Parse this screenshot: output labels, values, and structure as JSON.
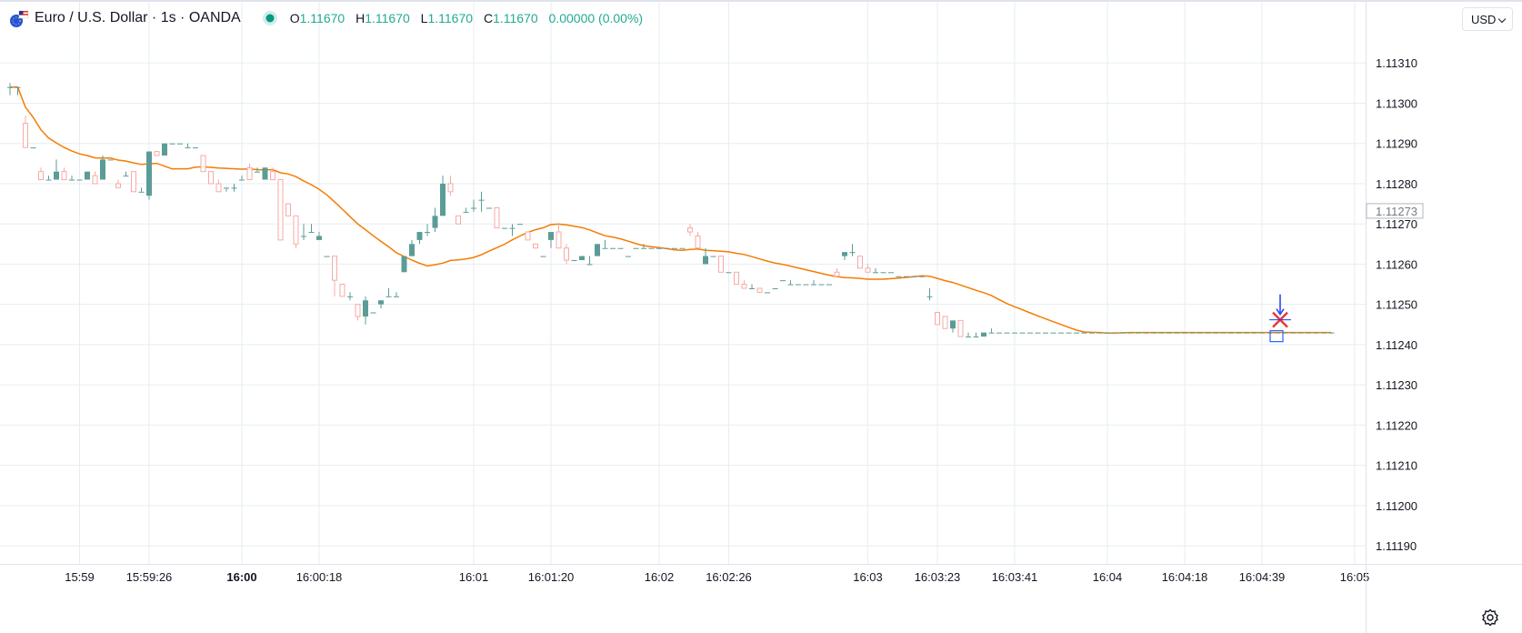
{
  "header": {
    "title": "Euro / U.S. Dollar · 1s · OANDA",
    "ohlc": {
      "o_label": "O",
      "o": "1.11670",
      "h_label": "H",
      "h": "1.11670",
      "l_label": "L",
      "l": "1.11670",
      "c_label": "C",
      "c": "1.11670",
      "change": "0.00000 (0.00%)"
    },
    "currency": "USD",
    "market_status_color": "#089981"
  },
  "colors": {
    "up": "#22ab94",
    "up_body": "#5b9c96",
    "down": "#f7a9a7",
    "ma": "#f57c00",
    "grid": "#e6edf3"
  },
  "chart_data": {
    "type": "candlestick",
    "title": "Euro / U.S. Dollar · 1s · OANDA",
    "ylim": [
      1.111855,
      1.113252
    ],
    "y_ticks": [
      1.1131,
      1.113,
      1.1129,
      1.1128,
      1.1127,
      1.1126,
      1.1125,
      1.1124,
      1.1123,
      1.1122,
      1.1121,
      1.112,
      1.1119
    ],
    "y_tick_labels": [
      "1.11310",
      "1.11300",
      "1.11290",
      "1.11280",
      "1.11270",
      "1.11260",
      "1.11250",
      "1.11240",
      "1.11230",
      "1.11220",
      "1.11210",
      "1.11200",
      "1.11190"
    ],
    "last_price_label": "1.11273",
    "last_price": 1.11273,
    "x_tick_labels": [
      {
        "label": "15:59",
        "bar": 9,
        "bold": false
      },
      {
        "label": "15:59:26",
        "bar": 18,
        "bold": false
      },
      {
        "label": "16:00",
        "bar": 30,
        "bold": true
      },
      {
        "label": "16:00:18",
        "bar": 40,
        "bold": false
      },
      {
        "label": "16:01",
        "bar": 60,
        "bold": false
      },
      {
        "label": "16:01:20",
        "bar": 70,
        "bold": false
      },
      {
        "label": "16:02",
        "bar": 84,
        "bold": false
      },
      {
        "label": "16:02:26",
        "bar": 93,
        "bold": false
      },
      {
        "label": "16:03",
        "bar": 111,
        "bold": false
      },
      {
        "label": "16:03:23",
        "bar": 120,
        "bold": false
      },
      {
        "label": "16:03:41",
        "bar": 130,
        "bold": false
      },
      {
        "label": "16:04",
        "bar": 142,
        "bold": false
      },
      {
        "label": "16:04:18",
        "bar": 152,
        "bold": false
      },
      {
        "label": "16:04:39",
        "bar": 162,
        "bold": false
      },
      {
        "label": "16:05",
        "bar": 174,
        "bold": false
      }
    ],
    "marker_bar": 164,
    "candles": [
      [
        1.11304,
        1.11305,
        1.11302,
        1.11304
      ],
      [
        1.11304,
        1.11304,
        1.11302,
        1.11304
      ],
      [
        1.11295,
        1.11297,
        1.1129,
        1.11289
      ],
      [
        1.11289,
        1.11289,
        1.11289,
        1.11289
      ],
      [
        1.11283,
        1.11284,
        1.11281,
        1.11281
      ],
      [
        1.11281,
        1.11282,
        1.11281,
        1.11281
      ],
      [
        1.11281,
        1.11286,
        1.11281,
        1.11283
      ],
      [
        1.11283,
        1.11284,
        1.11281,
        1.11281
      ],
      [
        1.11281,
        1.11282,
        1.11281,
        1.11281
      ],
      [
        1.11281,
        1.11281,
        1.11281,
        1.11281
      ],
      [
        1.11281,
        1.11283,
        1.11281,
        1.11283
      ],
      [
        1.11282,
        1.11283,
        1.1128,
        1.1128
      ],
      [
        1.11281,
        1.11287,
        1.11281,
        1.11286
      ],
      [
        1.11286,
        1.11286,
        1.11286,
        1.11286
      ],
      [
        1.1128,
        1.11281,
        1.11279,
        1.11279
      ],
      [
        1.11282,
        1.11283,
        1.11282,
        1.11282
      ],
      [
        1.11283,
        1.11283,
        1.11278,
        1.11278
      ],
      [
        1.11278,
        1.11279,
        1.11278,
        1.11278
      ],
      [
        1.11277,
        1.11288,
        1.11276,
        1.11288
      ],
      [
        1.11288,
        1.11288,
        1.11287,
        1.11287
      ],
      [
        1.11287,
        1.1129,
        1.11287,
        1.1129
      ],
      [
        1.1129,
        1.1129,
        1.1129,
        1.1129
      ],
      [
        1.1129,
        1.1129,
        1.1129,
        1.1129
      ],
      [
        1.11289,
        1.1129,
        1.11289,
        1.11289
      ],
      [
        1.11289,
        1.11289,
        1.11289,
        1.11289
      ],
      [
        1.11287,
        1.11287,
        1.11283,
        1.11283
      ],
      [
        1.11283,
        1.11283,
        1.11281,
        1.1128
      ],
      [
        1.1128,
        1.11281,
        1.11278,
        1.11278
      ],
      [
        1.11279,
        1.11279,
        1.11278,
        1.11279
      ],
      [
        1.11279,
        1.1128,
        1.11278,
        1.11279
      ],
      [
        1.11281,
        1.11282,
        1.11281,
        1.11281
      ],
      [
        1.11284,
        1.11285,
        1.11281,
        1.11281
      ],
      [
        1.11283,
        1.11284,
        1.11283,
        1.11283
      ],
      [
        1.11281,
        1.11284,
        1.11281,
        1.11284
      ],
      [
        1.11283,
        1.11284,
        1.11281,
        1.11281
      ],
      [
        1.11281,
        1.11281,
        1.11267,
        1.11266
      ],
      [
        1.11275,
        1.11275,
        1.11272,
        1.11272
      ],
      [
        1.11272,
        1.11272,
        1.11264,
        1.11265
      ],
      [
        1.11267,
        1.1127,
        1.11266,
        1.11267
      ],
      [
        1.11268,
        1.1127,
        1.11268,
        1.11268
      ],
      [
        1.11266,
        1.11268,
        1.11266,
        1.11267
      ],
      [
        1.11262,
        1.11262,
        1.11262,
        1.11262
      ],
      [
        1.11262,
        1.11262,
        1.11252,
        1.11256
      ],
      [
        1.11255,
        1.11255,
        1.11252,
        1.11252
      ],
      [
        1.11252,
        1.11253,
        1.11251,
        1.11252
      ],
      [
        1.1125,
        1.1125,
        1.11246,
        1.11247
      ],
      [
        1.11247,
        1.11252,
        1.11245,
        1.11251
      ],
      [
        1.11248,
        1.11248,
        1.11248,
        1.11248
      ],
      [
        1.1125,
        1.11251,
        1.11249,
        1.11251
      ],
      [
        1.11252,
        1.11254,
        1.11252,
        1.11252
      ],
      [
        1.11252,
        1.11253,
        1.11252,
        1.11252
      ],
      [
        1.11258,
        1.11262,
        1.11258,
        1.11262
      ],
      [
        1.11262,
        1.11266,
        1.11262,
        1.11265
      ],
      [
        1.11266,
        1.11268,
        1.11265,
        1.11268
      ],
      [
        1.11268,
        1.1127,
        1.11267,
        1.11268
      ],
      [
        1.11269,
        1.11274,
        1.11268,
        1.11272
      ],
      [
        1.11272,
        1.11282,
        1.11272,
        1.1128
      ],
      [
        1.1128,
        1.11282,
        1.11277,
        1.11278
      ],
      [
        1.11272,
        1.11272,
        1.1127,
        1.1127
      ],
      [
        1.11273,
        1.11274,
        1.11273,
        1.11273
      ],
      [
        1.11274,
        1.11276,
        1.11273,
        1.11274
      ],
      [
        1.11276,
        1.11278,
        1.11273,
        1.11276
      ],
      [
        1.11274,
        1.11274,
        1.11274,
        1.11274
      ],
      [
        1.11274,
        1.11274,
        1.11269,
        1.11269
      ],
      [
        1.11269,
        1.11269,
        1.11269,
        1.11269
      ],
      [
        1.11269,
        1.1127,
        1.11267,
        1.11269
      ],
      [
        1.1127,
        1.1127,
        1.1127,
        1.1127
      ],
      [
        1.11268,
        1.11268,
        1.11266,
        1.11266
      ],
      [
        1.11265,
        1.11265,
        1.11264,
        1.11264
      ],
      [
        1.11262,
        1.11262,
        1.11262,
        1.11262
      ],
      [
        1.11266,
        1.11268,
        1.11264,
        1.11268
      ],
      [
        1.11268,
        1.1127,
        1.11264,
        1.11264
      ],
      [
        1.11264,
        1.11265,
        1.1126,
        1.11261
      ],
      [
        1.11261,
        1.11261,
        1.11261,
        1.11261
      ],
      [
        1.11261,
        1.11262,
        1.11261,
        1.11262
      ],
      [
        1.1126,
        1.11262,
        1.1126,
        1.1126
      ],
      [
        1.11262,
        1.11265,
        1.11262,
        1.11265
      ],
      [
        1.11264,
        1.11266,
        1.11264,
        1.11264
      ],
      [
        1.11264,
        1.11264,
        1.11264,
        1.11264
      ],
      [
        1.11264,
        1.11264,
        1.11264,
        1.11264
      ],
      [
        1.11262,
        1.11262,
        1.11262,
        1.11262
      ],
      [
        1.11264,
        1.11264,
        1.11264,
        1.11264
      ],
      [
        1.11264,
        1.11265,
        1.11264,
        1.11264
      ],
      [
        1.11264,
        1.11264,
        1.11264,
        1.11264
      ],
      [
        1.11264,
        1.11264,
        1.11264,
        1.11264
      ],
      [
        1.11264,
        1.11264,
        1.11264,
        1.11264
      ],
      [
        1.11264,
        1.11264,
        1.11264,
        1.11264
      ],
      [
        1.11264,
        1.11264,
        1.11264,
        1.11264
      ],
      [
        1.11269,
        1.1127,
        1.11267,
        1.11268
      ],
      [
        1.11267,
        1.11268,
        1.11264,
        1.11264
      ],
      [
        1.1126,
        1.11264,
        1.1126,
        1.11262
      ],
      [
        1.11262,
        1.11262,
        1.11262,
        1.11262
      ],
      [
        1.11262,
        1.11262,
        1.11258,
        1.11258
      ],
      [
        1.11258,
        1.11258,
        1.11258,
        1.11258
      ],
      [
        1.11258,
        1.11258,
        1.11255,
        1.11255
      ],
      [
        1.11255,
        1.11256,
        1.11254,
        1.11254
      ],
      [
        1.11254,
        1.11255,
        1.11254,
        1.11254
      ],
      [
        1.11254,
        1.11254,
        1.11253,
        1.11253
      ],
      [
        1.11253,
        1.11253,
        1.11253,
        1.11253
      ],
      [
        1.11254,
        1.11254,
        1.11254,
        1.11254
      ],
      [
        1.11256,
        1.11256,
        1.11256,
        1.11256
      ],
      [
        1.11255,
        1.11256,
        1.11255,
        1.11255
      ],
      [
        1.11255,
        1.11255,
        1.11255,
        1.11255
      ],
      [
        1.11255,
        1.11255,
        1.11255,
        1.11255
      ],
      [
        1.11255,
        1.11256,
        1.11255,
        1.11255
      ],
      [
        1.11255,
        1.11255,
        1.11255,
        1.11255
      ],
      [
        1.11255,
        1.11255,
        1.11255,
        1.11255
      ],
      [
        1.11258,
        1.11259,
        1.11257,
        1.11257
      ],
      [
        1.11262,
        1.11263,
        1.11261,
        1.11263
      ],
      [
        1.11263,
        1.11265,
        1.11262,
        1.11263
      ],
      [
        1.11262,
        1.11262,
        1.11259,
        1.11259
      ],
      [
        1.11259,
        1.1126,
        1.11258,
        1.11258
      ],
      [
        1.11258,
        1.11259,
        1.11258,
        1.11258
      ],
      [
        1.11258,
        1.11258,
        1.11258,
        1.11258
      ],
      [
        1.11258,
        1.11258,
        1.11258,
        1.11258
      ],
      [
        1.11257,
        1.11257,
        1.11257,
        1.11257
      ],
      [
        1.11257,
        1.11257,
        1.11257,
        1.11257
      ],
      [
        1.11257,
        1.11257,
        1.11257,
        1.11257
      ],
      [
        1.11257,
        1.11257,
        1.11257,
        1.11257
      ],
      [
        1.11252,
        1.11254,
        1.11251,
        1.11252
      ],
      [
        1.11248,
        1.11248,
        1.11245,
        1.11245
      ],
      [
        1.11247,
        1.11247,
        1.11244,
        1.11244
      ],
      [
        1.11244,
        1.11246,
        1.11243,
        1.11246
      ],
      [
        1.11246,
        1.11246,
        1.11242,
        1.11242
      ],
      [
        1.11242,
        1.11243,
        1.11242,
        1.11242
      ],
      [
        1.11242,
        1.11243,
        1.11242,
        1.11242
      ],
      [
        1.11242,
        1.11243,
        1.11242,
        1.11243
      ],
      [
        1.11243,
        1.11244,
        1.11243,
        1.11243
      ],
      [
        1.11243,
        1.11243,
        1.11243,
        1.11243
      ],
      [
        1.11243,
        1.11243,
        1.11243,
        1.11243
      ],
      [
        1.11243,
        1.11243,
        1.11243,
        1.11243
      ],
      [
        1.11243,
        1.11243,
        1.11243,
        1.11243
      ],
      [
        1.11243,
        1.11243,
        1.11243,
        1.11243
      ],
      [
        1.11243,
        1.11243,
        1.11243,
        1.11243
      ],
      [
        1.11243,
        1.11243,
        1.11243,
        1.11243
      ],
      [
        1.11243,
        1.11243,
        1.11243,
        1.11243
      ],
      [
        1.11243,
        1.11243,
        1.11243,
        1.11243
      ],
      [
        1.11243,
        1.11243,
        1.11243,
        1.11243
      ],
      [
        1.11243,
        1.11243,
        1.11243,
        1.11243
      ],
      [
        1.11243,
        1.11243,
        1.11243,
        1.11243
      ],
      [
        1.11243,
        1.11243,
        1.11243,
        1.11243
      ],
      [
        1.11243,
        1.11243,
        1.11243,
        1.11243
      ],
      [
        1.11243,
        1.11243,
        1.11243,
        1.11243
      ],
      [
        1.11243,
        1.11243,
        1.11243,
        1.11243
      ],
      [
        1.11243,
        1.11243,
        1.11243,
        1.11243
      ],
      [
        1.11243,
        1.11243,
        1.11243,
        1.11243
      ],
      [
        1.11243,
        1.11243,
        1.11243,
        1.11243
      ],
      [
        1.11243,
        1.11243,
        1.11243,
        1.11243
      ],
      [
        1.11243,
        1.11243,
        1.11243,
        1.11243
      ],
      [
        1.11243,
        1.11243,
        1.11243,
        1.11243
      ],
      [
        1.11243,
        1.11243,
        1.11243,
        1.11243
      ],
      [
        1.11243,
        1.11243,
        1.11243,
        1.11243
      ],
      [
        1.11243,
        1.11243,
        1.11243,
        1.11243
      ],
      [
        1.11243,
        1.11243,
        1.11243,
        1.11243
      ],
      [
        1.11243,
        1.11243,
        1.11243,
        1.11243
      ],
      [
        1.11243,
        1.11243,
        1.11243,
        1.11243
      ],
      [
        1.11243,
        1.11243,
        1.11243,
        1.11243
      ],
      [
        1.11243,
        1.11243,
        1.11243,
        1.11243
      ],
      [
        1.11243,
        1.11243,
        1.11243,
        1.11243
      ],
      [
        1.11243,
        1.11243,
        1.11243,
        1.11243
      ],
      [
        1.11243,
        1.11243,
        1.11243,
        1.11243
      ],
      [
        1.11243,
        1.11243,
        1.11243,
        1.11243
      ],
      [
        1.11243,
        1.11243,
        1.11243,
        1.11243
      ],
      [
        1.11243,
        1.11243,
        1.11243,
        1.11243
      ],
      [
        1.11243,
        1.11243,
        1.11243,
        1.11243
      ],
      [
        1.11243,
        1.11243,
        1.11243,
        1.11243
      ],
      [
        1.11243,
        1.11243,
        1.11243,
        1.11243
      ],
      [
        1.11243,
        1.11243,
        1.11243,
        1.11243
      ],
      [
        1.11243,
        1.11243,
        1.11243,
        1.11243
      ],
      [
        1.11243,
        1.11243,
        1.11243,
        1.11243
      ],
      [
        1.11243,
        1.11243,
        1.11243,
        1.11243
      ],
      [
        1.11243,
        1.11243,
        1.11243,
        1.11243
      ]
    ]
  }
}
